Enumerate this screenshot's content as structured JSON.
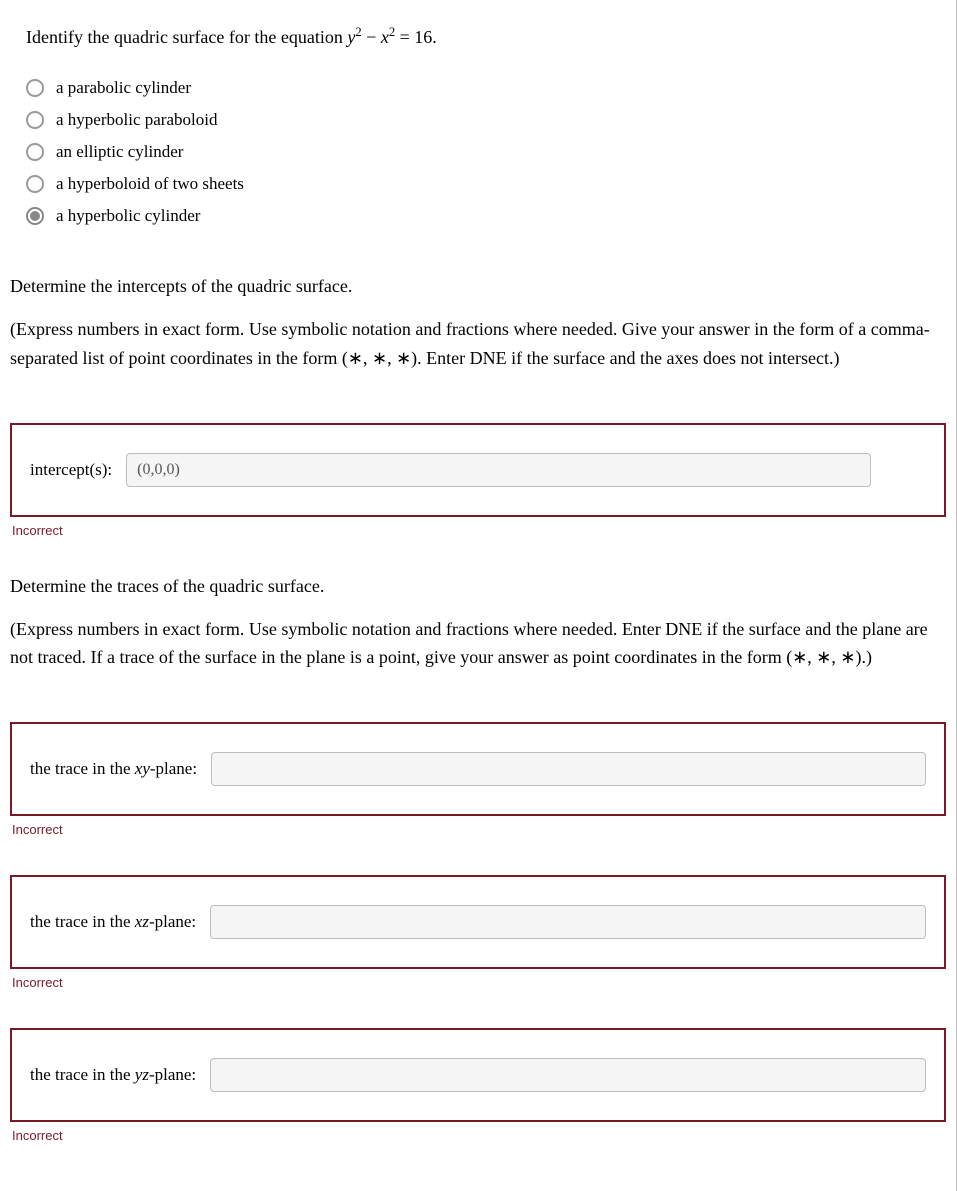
{
  "question1": {
    "prompt_pre": "Identify the quadric surface for the equation ",
    "equation_html": "<span class='mathit'>y</span><sup>2</sup> − <span class='mathit'>x</span><sup>2</sup> = 16.",
    "options": [
      {
        "label": "a parabolic cylinder",
        "selected": false
      },
      {
        "label": "a hyperbolic paraboloid",
        "selected": false
      },
      {
        "label": "an elliptic cylinder",
        "selected": false
      },
      {
        "label": "a hyperboloid of two sheets",
        "selected": false
      },
      {
        "label": "a hyperbolic cylinder",
        "selected": true
      }
    ]
  },
  "question2": {
    "heading": "Determine the intercepts of the quadric surface.",
    "instructions": "(Express numbers in exact form. Use symbolic notation and fractions where needed. Give your answer in the form of a comma-separated list of point coordinates in the form (∗, ∗, ∗). Enter DNE if the surface and the axes does not intersect.)",
    "field_label": "intercept(s):",
    "value": "(0,0,0)",
    "feedback": "Incorrect"
  },
  "question3": {
    "heading": "Determine the traces of the quadric surface.",
    "instructions": "(Express numbers in exact form. Use symbolic notation and fractions where needed. Enter DNE if the surface and the plane are not traced. If a trace of the surface in the plane is a point, give your answer as point coordinates in the form (∗, ∗, ∗).)",
    "fields": [
      {
        "label_pre": "the trace in the ",
        "plane_html": "<span class='mathit'>xy</span>-plane:",
        "value": "",
        "feedback": "Incorrect"
      },
      {
        "label_pre": "the trace in the ",
        "plane_html": "<span class='mathit'>xz</span>-plane:",
        "value": "",
        "feedback": "Incorrect"
      },
      {
        "label_pre": "the trace in the ",
        "plane_html": "<span class='mathit'>yz</span>-plane:",
        "value": "",
        "feedback": "Incorrect"
      }
    ]
  },
  "colors": {
    "incorrect_border": "#7a1927",
    "incorrect_text": "#7a1927",
    "input_bg": "#f5f5f5",
    "input_border": "#bdbdbd"
  }
}
